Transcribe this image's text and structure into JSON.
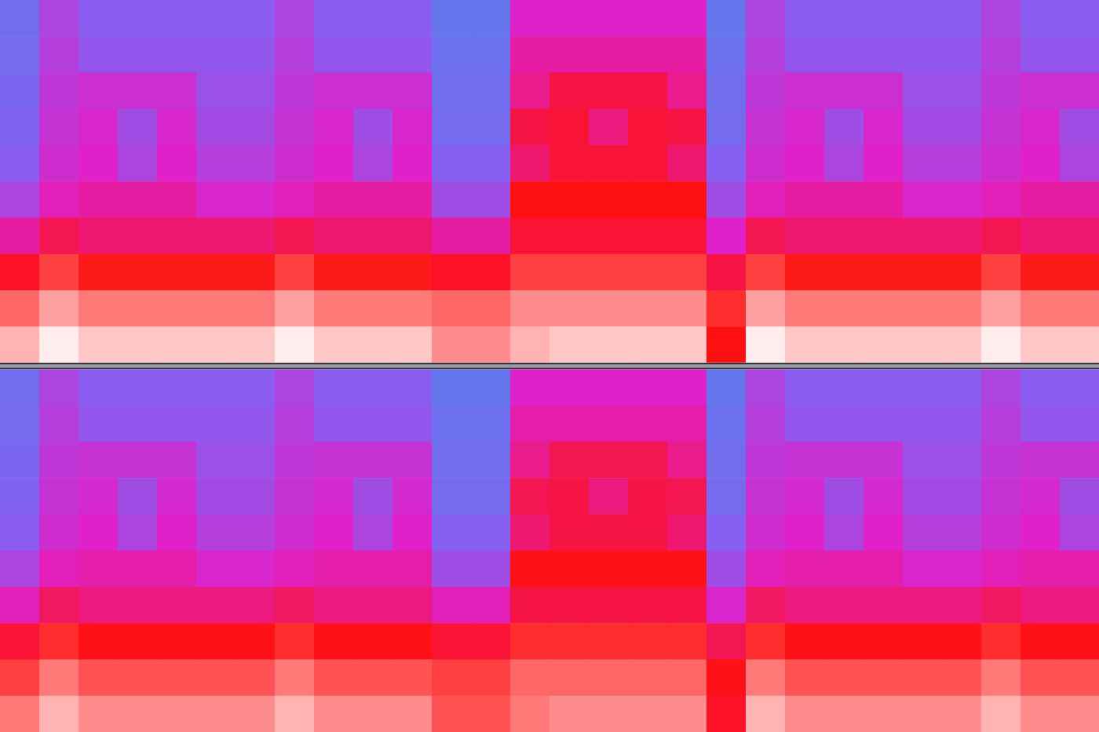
{
  "chart_data": [
    {
      "type": "heatmap",
      "tick_labels": false,
      "zlim": [
        0,
        100
      ],
      "cells": [
        [
          20,
          38,
          30,
          30,
          30,
          30,
          30,
          38,
          30,
          30,
          30,
          15,
          15,
          50,
          50,
          50,
          50,
          50,
          15,
          38,
          30,
          30,
          30,
          30,
          30,
          38,
          30,
          30
        ],
        [
          22,
          40,
          32,
          32,
          32,
          32,
          32,
          40,
          32,
          32,
          32,
          18,
          18,
          55,
          55,
          55,
          55,
          55,
          18,
          40,
          32,
          32,
          32,
          32,
          32,
          40,
          32,
          32
        ],
        [
          24,
          42,
          45,
          45,
          45,
          34,
          34,
          42,
          45,
          45,
          45,
          20,
          20,
          58,
          68,
          68,
          68,
          58,
          20,
          42,
          45,
          45,
          45,
          34,
          34,
          42,
          45,
          45
        ],
        [
          26,
          44,
          48,
          35,
          48,
          36,
          36,
          44,
          48,
          35,
          48,
          22,
          22,
          68,
          70,
          60,
          70,
          68,
          22,
          44,
          48,
          35,
          48,
          36,
          36,
          44,
          48,
          35
        ],
        [
          30,
          46,
          50,
          38,
          50,
          40,
          40,
          46,
          50,
          38,
          50,
          28,
          28,
          62,
          70,
          70,
          70,
          62,
          28,
          46,
          50,
          38,
          50,
          40,
          40,
          46,
          50,
          38
        ],
        [
          38,
          52,
          55,
          55,
          55,
          48,
          48,
          52,
          55,
          55,
          55,
          35,
          35,
          75,
          75,
          75,
          75,
          75,
          35,
          52,
          55,
          55,
          55,
          48,
          48,
          52,
          55,
          55
        ],
        [
          55,
          66,
          62,
          62,
          62,
          62,
          62,
          66,
          62,
          62,
          62,
          55,
          55,
          70,
          70,
          70,
          70,
          70,
          50,
          66,
          62,
          62,
          62,
          62,
          62,
          66,
          62,
          62
        ],
        [
          72,
          80,
          76,
          76,
          76,
          76,
          76,
          80,
          76,
          76,
          76,
          72,
          72,
          80,
          80,
          80,
          80,
          80,
          68,
          80,
          76,
          76,
          76,
          76,
          76,
          80,
          76,
          76
        ],
        [
          84,
          90,
          86,
          86,
          86,
          86,
          86,
          90,
          86,
          86,
          86,
          84,
          84,
          88,
          88,
          88,
          88,
          88,
          78,
          90,
          86,
          86,
          86,
          86,
          86,
          90,
          86,
          86
        ],
        [
          92,
          98,
          94,
          94,
          94,
          94,
          94,
          98,
          94,
          94,
          94,
          88,
          88,
          92,
          94,
          94,
          94,
          94,
          75,
          98,
          94,
          94,
          94,
          94,
          94,
          98,
          94,
          94
        ]
      ]
    },
    {
      "type": "heatmap",
      "tick_labels": false,
      "zlim": [
        0,
        100
      ],
      "cells": [
        [
          20,
          38,
          30,
          30,
          30,
          30,
          30,
          38,
          30,
          30,
          30,
          15,
          15,
          50,
          50,
          50,
          50,
          50,
          15,
          38,
          30,
          30,
          30,
          30,
          30,
          38,
          30,
          30
        ],
        [
          22,
          40,
          32,
          32,
          32,
          32,
          32,
          40,
          32,
          32,
          32,
          18,
          18,
          54,
          54,
          54,
          54,
          54,
          18,
          40,
          32,
          32,
          32,
          32,
          32,
          40,
          32,
          32
        ],
        [
          24,
          42,
          44,
          44,
          44,
          34,
          34,
          42,
          44,
          44,
          44,
          20,
          20,
          58,
          66,
          66,
          66,
          58,
          20,
          42,
          44,
          44,
          44,
          34,
          34,
          42,
          44,
          44
        ],
        [
          26,
          44,
          47,
          35,
          47,
          36,
          36,
          44,
          47,
          35,
          47,
          22,
          22,
          66,
          68,
          60,
          68,
          66,
          22,
          44,
          47,
          35,
          47,
          36,
          36,
          44,
          47,
          35
        ],
        [
          30,
          46,
          50,
          38,
          50,
          40,
          40,
          46,
          50,
          38,
          50,
          28,
          28,
          62,
          68,
          68,
          68,
          62,
          28,
          46,
          50,
          38,
          50,
          40,
          40,
          46,
          50,
          38
        ],
        [
          38,
          52,
          54,
          54,
          54,
          48,
          48,
          52,
          54,
          54,
          54,
          35,
          35,
          74,
          74,
          74,
          74,
          74,
          35,
          52,
          54,
          54,
          54,
          48,
          48,
          52,
          54,
          54
        ],
        [
          52,
          64,
          60,
          60,
          60,
          60,
          60,
          64,
          60,
          60,
          60,
          52,
          52,
          68,
          68,
          68,
          68,
          68,
          48,
          64,
          60,
          60,
          60,
          60,
          60,
          64,
          60,
          60
        ],
        [
          70,
          78,
          74,
          74,
          74,
          74,
          74,
          78,
          74,
          74,
          74,
          70,
          70,
          78,
          78,
          78,
          78,
          78,
          66,
          78,
          74,
          74,
          74,
          74,
          74,
          78,
          74,
          74
        ],
        [
          80,
          86,
          82,
          82,
          82,
          82,
          82,
          86,
          82,
          82,
          82,
          80,
          80,
          84,
          84,
          84,
          84,
          84,
          74,
          86,
          82,
          82,
          82,
          82,
          82,
          86,
          82,
          82
        ],
        [
          86,
          92,
          88,
          88,
          88,
          88,
          88,
          92,
          88,
          88,
          88,
          82,
          82,
          86,
          88,
          88,
          88,
          88,
          72,
          92,
          88,
          88,
          88,
          88,
          88,
          92,
          88,
          88
        ]
      ]
    }
  ]
}
